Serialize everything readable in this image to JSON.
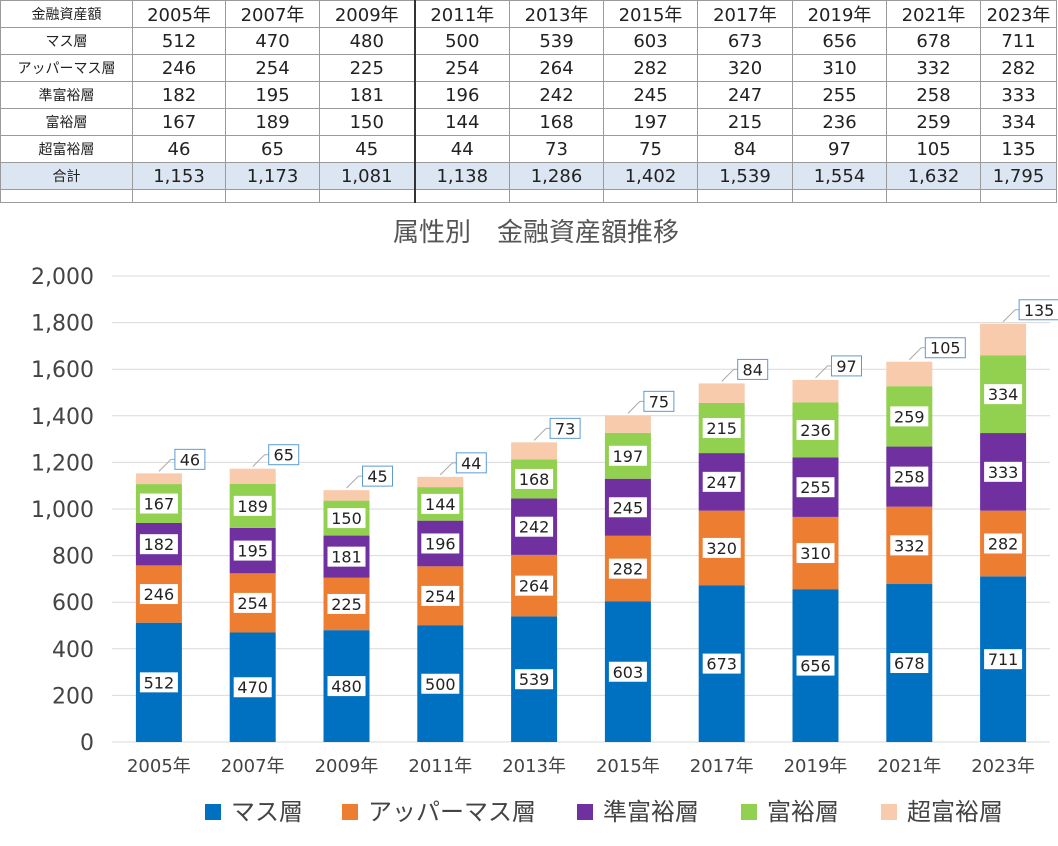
{
  "table": {
    "corner": "金融資産額",
    "years": [
      "2005年",
      "2007年",
      "2009年",
      "2011年",
      "2013年",
      "2015年",
      "2017年",
      "2019年",
      "2021年",
      "2023年"
    ],
    "rows": [
      {
        "name": "マス層",
        "values": [
          "512",
          "470",
          "480",
          "500",
          "539",
          "603",
          "673",
          "656",
          "678",
          "711"
        ]
      },
      {
        "name": "アッパーマス層",
        "values": [
          "246",
          "254",
          "225",
          "254",
          "264",
          "282",
          "320",
          "310",
          "332",
          "282"
        ]
      },
      {
        "name": "準富裕層",
        "values": [
          "182",
          "195",
          "181",
          "196",
          "242",
          "245",
          "247",
          "255",
          "258",
          "333"
        ]
      },
      {
        "name": "富裕層",
        "values": [
          "167",
          "189",
          "150",
          "144",
          "168",
          "197",
          "215",
          "236",
          "259",
          "334"
        ]
      },
      {
        "name": "超富裕層",
        "values": [
          "46",
          "65",
          "45",
          "44",
          "73",
          "75",
          "84",
          "97",
          "105",
          "135"
        ]
      }
    ],
    "total": {
      "name": "合計",
      "values": [
        "1,153",
        "1,173",
        "1,081",
        "1,138",
        "1,286",
        "1,402",
        "1,539",
        "1,554",
        "1,632",
        "1,795"
      ]
    }
  },
  "chart_data": {
    "type": "bar",
    "stacked": true,
    "title": "属性別　金融資産額推移",
    "categories": [
      "2005年",
      "2007年",
      "2009年",
      "2011年",
      "2013年",
      "2015年",
      "2017年",
      "2019年",
      "2021年",
      "2023年"
    ],
    "series": [
      {
        "name": "マス層",
        "color": "#0070c0",
        "values": [
          512,
          470,
          480,
          500,
          539,
          603,
          673,
          656,
          678,
          711
        ]
      },
      {
        "name": "アッパーマス層",
        "color": "#ed7d31",
        "values": [
          246,
          254,
          225,
          254,
          264,
          282,
          320,
          310,
          332,
          282
        ]
      },
      {
        "name": "準富裕層",
        "color": "#7030a0",
        "values": [
          182,
          195,
          181,
          196,
          242,
          245,
          247,
          255,
          258,
          333
        ]
      },
      {
        "name": "富裕層",
        "color": "#92d050",
        "values": [
          167,
          189,
          150,
          144,
          168,
          197,
          215,
          236,
          259,
          334
        ]
      },
      {
        "name": "超富裕層",
        "color": "#f8cbad",
        "values": [
          46,
          65,
          45,
          44,
          73,
          75,
          84,
          97,
          105,
          135
        ]
      }
    ],
    "ylim": [
      0,
      2000
    ],
    "yticks": [
      "0",
      "200",
      "400",
      "600",
      "800",
      "1,000",
      "1,200",
      "1,400",
      "1,600",
      "1,800",
      "2,000"
    ],
    "grid": true,
    "legend": "bottom"
  }
}
